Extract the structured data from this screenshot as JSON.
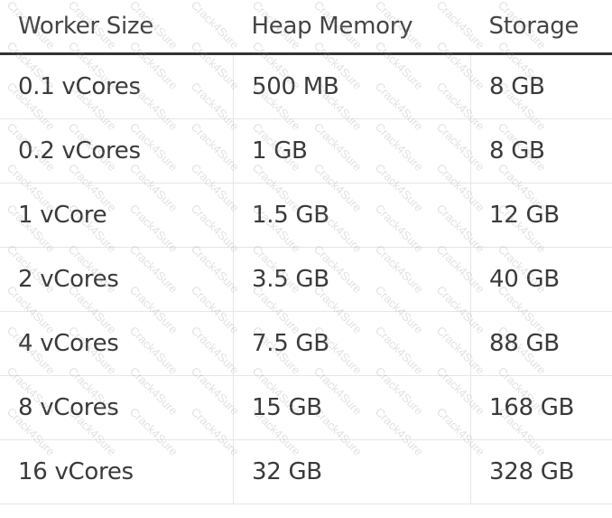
{
  "table": {
    "headers": [
      "Worker Size",
      "Heap Memory",
      "Storage"
    ],
    "rows": [
      [
        "0.1 vCores",
        "500 MB",
        "8 GB"
      ],
      [
        "0.2 vCores",
        "1 GB",
        "8 GB"
      ],
      [
        "1 vCore",
        "1.5 GB",
        "12 GB"
      ],
      [
        "2 vCores",
        "3.5 GB",
        "40 GB"
      ],
      [
        "4 vCores",
        "7.5 GB",
        "88 GB"
      ],
      [
        "8 vCores",
        "15 GB",
        "168 GB"
      ],
      [
        "16 vCores",
        "32 GB",
        "328 GB"
      ]
    ]
  },
  "watermark": "Crack4Sure"
}
